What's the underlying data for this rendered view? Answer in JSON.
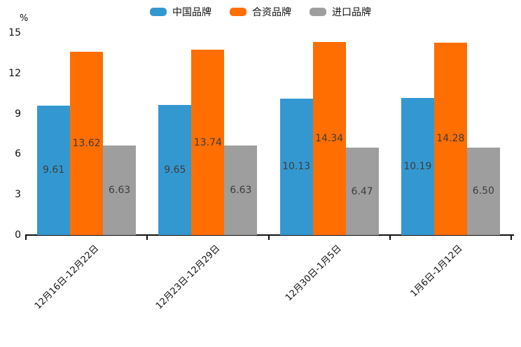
{
  "chart_data": {
    "type": "bar",
    "title": "",
    "unit_label": "%",
    "categories": [
      "12月16日-12月22日",
      "12月23日-12月29日",
      "12月30日-1月5日",
      "1月6日-1月12日"
    ],
    "series": [
      {
        "name": "中国品牌",
        "color": "#3498d0",
        "values": [
          9.61,
          9.65,
          10.13,
          10.19
        ]
      },
      {
        "name": "合资品牌",
        "color": "#ff6e00",
        "values": [
          13.62,
          13.74,
          14.34,
          14.28
        ]
      },
      {
        "name": "进口品牌",
        "color": "#9e9e9e",
        "values": [
          6.63,
          6.63,
          6.47,
          6.5
        ]
      }
    ],
    "yticks": [
      0,
      3,
      6,
      9,
      12,
      15
    ],
    "ylim": [
      0,
      15
    ],
    "value_labels": true,
    "value_label_decimals": 2,
    "legend_position": "top",
    "grid": false,
    "xlabel_rotation_deg": 45
  },
  "colors": {
    "axis": "#111111",
    "tick_label": "#111111",
    "value_label": "#3d3d3d",
    "background": "#ffffff"
  }
}
